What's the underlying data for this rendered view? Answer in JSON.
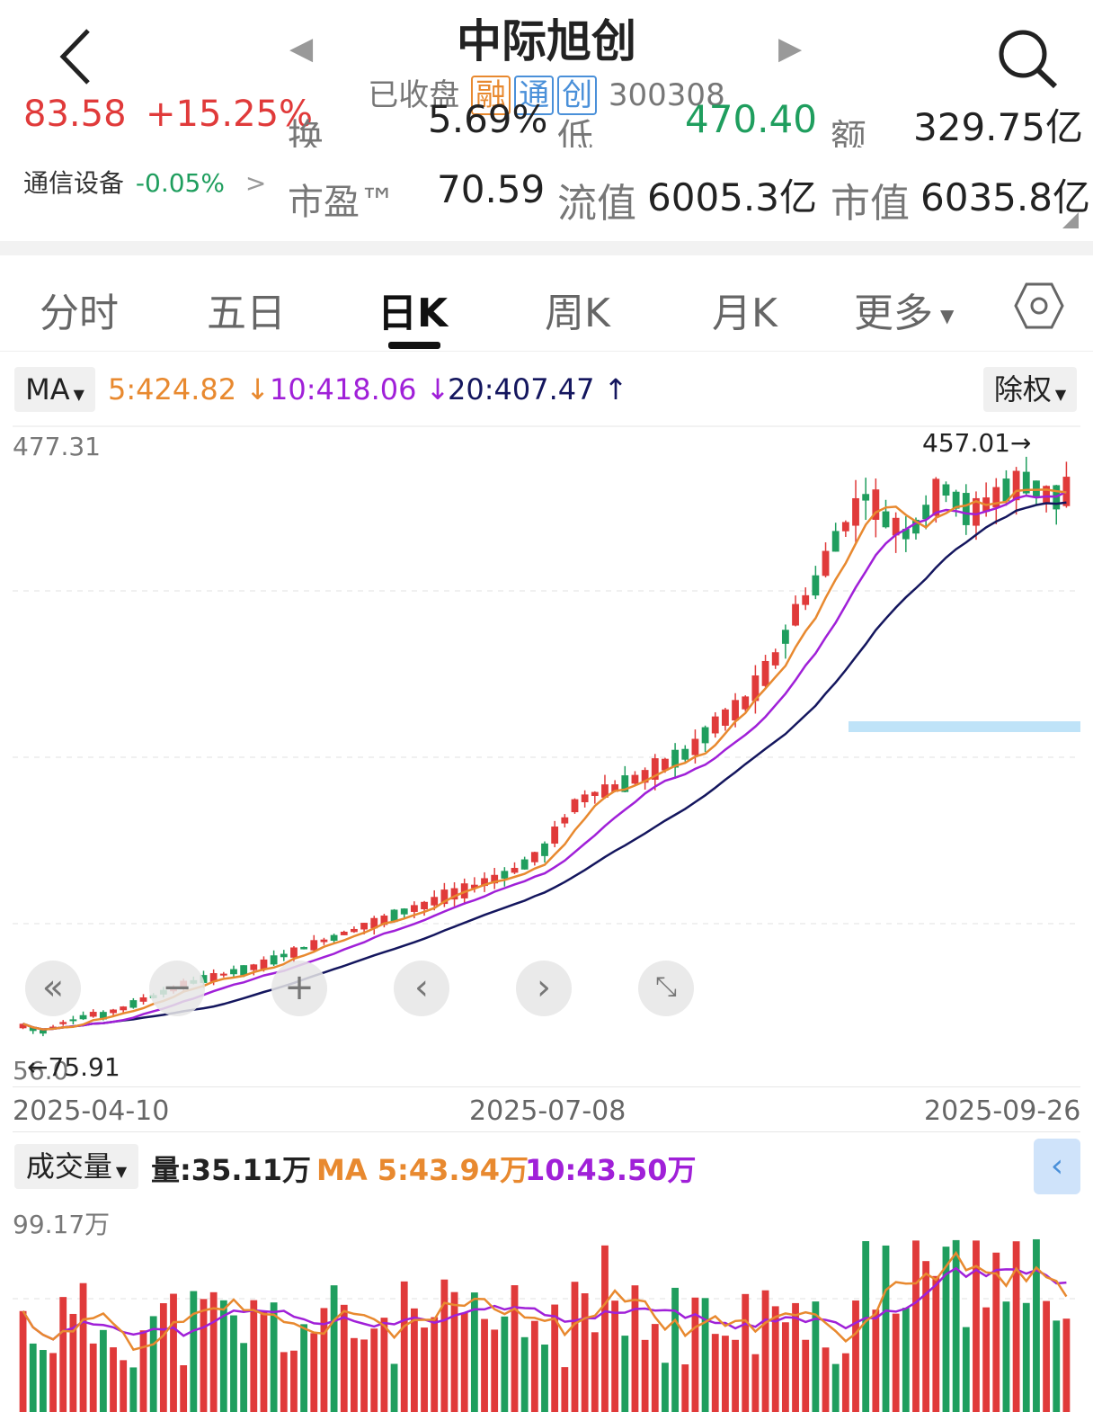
{
  "header": {
    "back_icon": "chevron-left-icon",
    "title": "中际旭创",
    "status": "已收盘",
    "tags": [
      "融",
      "通",
      "创"
    ],
    "code": "300308",
    "search_icon": "search-icon"
  },
  "stats_partial": {
    "v1": "83.58",
    "v2": "+15.25%",
    "turnover_label": "换",
    "turnover_value": "5.69%",
    "low_label": "低",
    "low_value": "470.40",
    "amount_label": "额",
    "amount_value": "329.75亿"
  },
  "stats": {
    "industry": "通信设备",
    "industry_change": "-0.05%",
    "pe_label": "市盈™",
    "pe_value": "70.59",
    "float_label": "流值",
    "float_value": "6005.3亿",
    "cap_label": "市值",
    "cap_value": "6035.8亿"
  },
  "tabs": [
    "分时",
    "五日",
    "日K",
    "周K",
    "月K",
    "更多"
  ],
  "active_tab": "日K",
  "ma_bar": {
    "label": "MA",
    "ma5": "5:424.82",
    "ma10": "10:418.06",
    "ma20": "20:407.47",
    "adjust": "除权"
  },
  "price_axis": {
    "top": "477.31",
    "bottom": "56.0",
    "max_marker": "457.01",
    "min_marker": "75.91"
  },
  "dates": [
    "2025-04-10",
    "2025-07-08",
    "2025-09-26"
  ],
  "volume_bar": {
    "label": "成交量",
    "volume": "量:35.11万",
    "ma_label": "MA",
    "ma5": "5:43.94万",
    "ma10": "10:43.50万",
    "axis_top": "99.17万"
  },
  "colors": {
    "up": "#e03a3a",
    "down": "#1f9e5e",
    "ma5": "#e8892f",
    "ma10": "#a020d8",
    "ma20": "#14165e",
    "accent_tag": "#e8892f",
    "blue_tag": "#4a90d9"
  },
  "chart_data": {
    "type": "candlestick",
    "x_start": "2025-04-10",
    "x_end": "2025-09-26",
    "ylim": [
      56.0,
      477.31
    ],
    "price_path": [
      80,
      78,
      76,
      79,
      82,
      84,
      86,
      88,
      87,
      90,
      92,
      95,
      98,
      100,
      103,
      105,
      108,
      110,
      112,
      113,
      115,
      117,
      118,
      120,
      122,
      125,
      128,
      130,
      133,
      135,
      138,
      140,
      143,
      145,
      148,
      150,
      152,
      155,
      158,
      160,
      162,
      165,
      168,
      170,
      172,
      175,
      178,
      180,
      183,
      186,
      190,
      195,
      200,
      210,
      220,
      230,
      235,
      238,
      240,
      242,
      245,
      248,
      250,
      255,
      258,
      262,
      265,
      270,
      278,
      285,
      290,
      295,
      300,
      310,
      320,
      330,
      345,
      360,
      370,
      380,
      395,
      410,
      420,
      430,
      440,
      435,
      425,
      420,
      415,
      420,
      430,
      440,
      445,
      438,
      432,
      430,
      435,
      440,
      445,
      448,
      450,
      446,
      442,
      440,
      444
    ],
    "volume_ylim": [
      0,
      99.17
    ]
  }
}
